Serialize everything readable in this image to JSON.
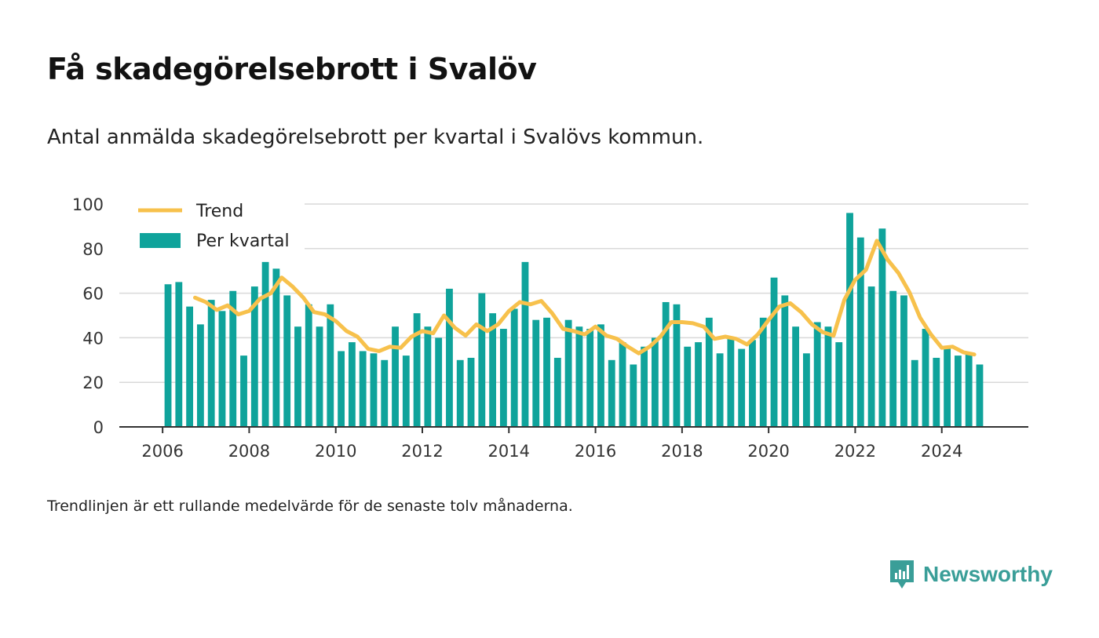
{
  "title": "Få skadegörelsebrott i Svalöv",
  "subtitle": "Antal anmälda skadegörelsebrott per kvartal i Svalövs kommun.",
  "footnote": "Trendlinjen är ett rullande medelvärde för de senaste tolv månaderna.",
  "brand": "Newsworthy",
  "colors": {
    "bar": "#0fa39b",
    "trend": "#f7c14c",
    "grid": "#d9d9d9",
    "axis": "#333333",
    "brand": "#3a9e98"
  },
  "chart_data": {
    "type": "bar",
    "xlim": [
      "2005-01-01",
      "2026-01-01"
    ],
    "ylim": [
      0,
      100
    ],
    "yticks": [
      0,
      20,
      40,
      60,
      80,
      100
    ],
    "xticks": [
      2006,
      2008,
      2010,
      2012,
      2014,
      2016,
      2018,
      2020,
      2022,
      2024
    ],
    "grid": true,
    "legend_position": "top-left",
    "series": [
      {
        "name": "Per kvartal",
        "type": "bar",
        "x": [
          "2006-Q1",
          "2006-Q2",
          "2006-Q3",
          "2006-Q4",
          "2007-Q1",
          "2007-Q2",
          "2007-Q3",
          "2007-Q4",
          "2008-Q1",
          "2008-Q2",
          "2008-Q3",
          "2008-Q4",
          "2009-Q1",
          "2009-Q2",
          "2009-Q3",
          "2009-Q4",
          "2010-Q1",
          "2010-Q2",
          "2010-Q3",
          "2010-Q4",
          "2011-Q1",
          "2011-Q2",
          "2011-Q3",
          "2011-Q4",
          "2012-Q1",
          "2012-Q2",
          "2012-Q3",
          "2012-Q4",
          "2013-Q1",
          "2013-Q2",
          "2013-Q3",
          "2013-Q4",
          "2014-Q1",
          "2014-Q2",
          "2014-Q3",
          "2014-Q4",
          "2015-Q1",
          "2015-Q2",
          "2015-Q3",
          "2015-Q4",
          "2016-Q1",
          "2016-Q2",
          "2016-Q3",
          "2016-Q4",
          "2017-Q1",
          "2017-Q2",
          "2017-Q3",
          "2017-Q4",
          "2018-Q1",
          "2018-Q2",
          "2018-Q3",
          "2018-Q4",
          "2019-Q1",
          "2019-Q2",
          "2019-Q3",
          "2019-Q4",
          "2020-Q1",
          "2020-Q2",
          "2020-Q3",
          "2020-Q4",
          "2021-Q1",
          "2021-Q2",
          "2021-Q3",
          "2021-Q4",
          "2022-Q1",
          "2022-Q2",
          "2022-Q3",
          "2022-Q4",
          "2023-Q1",
          "2023-Q2",
          "2023-Q3",
          "2023-Q4",
          "2024-Q1",
          "2024-Q2",
          "2024-Q3",
          "2024-Q4"
        ],
        "values": [
          64,
          65,
          54,
          46,
          57,
          52,
          61,
          32,
          63,
          74,
          71,
          59,
          45,
          55,
          45,
          55,
          34,
          38,
          34,
          33,
          30,
          45,
          32,
          51,
          45,
          40,
          62,
          30,
          31,
          60,
          51,
          44,
          53,
          74,
          48,
          49,
          31,
          48,
          45,
          44,
          46,
          30,
          38,
          28,
          36,
          40,
          56,
          55,
          36,
          38,
          49,
          33,
          40,
          35,
          39,
          49,
          67,
          59,
          45,
          33,
          47,
          45,
          38,
          96,
          85,
          63,
          89,
          61,
          59,
          30,
          44,
          31,
          36,
          32,
          33,
          28
        ]
      },
      {
        "name": "Trend",
        "type": "line",
        "x": [
          "2006-10",
          "2007-01",
          "2007-04",
          "2007-07",
          "2007-10",
          "2008-01",
          "2008-04",
          "2008-07",
          "2008-10",
          "2009-01",
          "2009-04",
          "2009-07",
          "2009-10",
          "2010-01",
          "2010-04",
          "2010-07",
          "2010-10",
          "2011-01",
          "2011-04",
          "2011-07",
          "2011-10",
          "2012-01",
          "2012-04",
          "2012-07",
          "2012-10",
          "2013-01",
          "2013-04",
          "2013-07",
          "2013-10",
          "2014-01",
          "2014-04",
          "2014-07",
          "2014-10",
          "2015-01",
          "2015-04",
          "2015-07",
          "2015-10",
          "2016-01",
          "2016-04",
          "2016-07",
          "2016-10",
          "2017-01",
          "2017-04",
          "2017-07",
          "2017-10",
          "2018-01",
          "2018-04",
          "2018-07",
          "2018-10",
          "2019-01",
          "2019-04",
          "2019-07",
          "2019-10",
          "2020-01",
          "2020-04",
          "2020-07",
          "2020-10",
          "2021-01",
          "2021-04",
          "2021-07",
          "2021-10",
          "2022-01",
          "2022-04",
          "2022-07",
          "2022-10",
          "2023-01",
          "2023-04",
          "2023-07",
          "2023-10",
          "2024-01",
          "2024-04",
          "2024-07",
          "2024-10"
        ],
        "values": [
          58,
          56,
          52.5,
          54.5,
          50.5,
          52,
          57.5,
          60,
          67,
          63,
          58,
          51.5,
          50.5,
          47.5,
          43,
          40.5,
          35,
          34,
          36,
          35.5,
          40.5,
          43,
          42,
          50,
          44.5,
          41,
          46,
          43,
          46,
          52,
          56,
          55,
          56.5,
          51,
          44,
          43,
          41.5,
          45,
          41,
          39.5,
          36,
          33,
          36,
          40.5,
          47,
          47,
          46.5,
          45,
          39.5,
          40.5,
          39.5,
          37,
          41.5,
          48,
          54,
          55.5,
          51.5,
          46,
          42.5,
          41,
          57,
          66,
          70.5,
          83.5,
          75,
          69,
          60.5,
          49,
          41.5,
          35.5,
          36,
          33.5,
          32.5
        ]
      }
    ]
  }
}
